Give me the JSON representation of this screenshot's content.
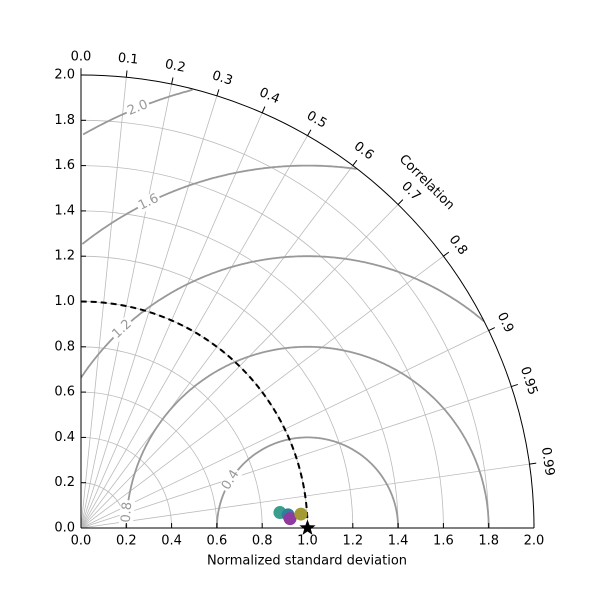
{
  "chart_data": {
    "type": "taylor",
    "x_label": "Normalized standard deviation",
    "correlation_label": "Correlation",
    "xlim": [
      0,
      2
    ],
    "ylim": [
      0,
      2
    ],
    "xticks": [
      {
        "value": 0,
        "label": "0.0"
      },
      0.2,
      0.4,
      0.6,
      0.8,
      {
        "value": 1,
        "label": "1.0"
      },
      1.2,
      1.4,
      1.6,
      1.8,
      {
        "value": 2,
        "label": "2.0"
      }
    ],
    "yticks": [
      {
        "value": 0,
        "label": "0.0"
      },
      0.2,
      0.4,
      0.6,
      0.8,
      {
        "value": 1,
        "label": "1.0"
      },
      1.2,
      1.4,
      1.6,
      1.8,
      {
        "value": 2,
        "label": "2.0"
      }
    ],
    "correlation_ticks": [
      {
        "value": 0,
        "label": "0.0"
      },
      0.1,
      0.2,
      0.3,
      0.4,
      0.5,
      0.6,
      0.7,
      0.8,
      0.9,
      0.95,
      0.99
    ],
    "rms_levels": [
      0.4,
      0.8,
      1.2,
      1.6,
      {
        "value": 2,
        "label": "2.0"
      }
    ],
    "grid": true,
    "reference": {
      "std": 1,
      "correlation": 1
    },
    "points": [
      {
        "color": "#3a9e8c",
        "std": 0.881,
        "correlation": 0.997
      },
      {
        "color": "#2f7f9a",
        "std": 0.916,
        "correlation": 0.998
      },
      {
        "color": "#8e3a9e",
        "std": 0.924,
        "correlation": 0.999
      },
      {
        "color": "#a39a33",
        "std": 0.973,
        "correlation": 0.998
      }
    ]
  }
}
